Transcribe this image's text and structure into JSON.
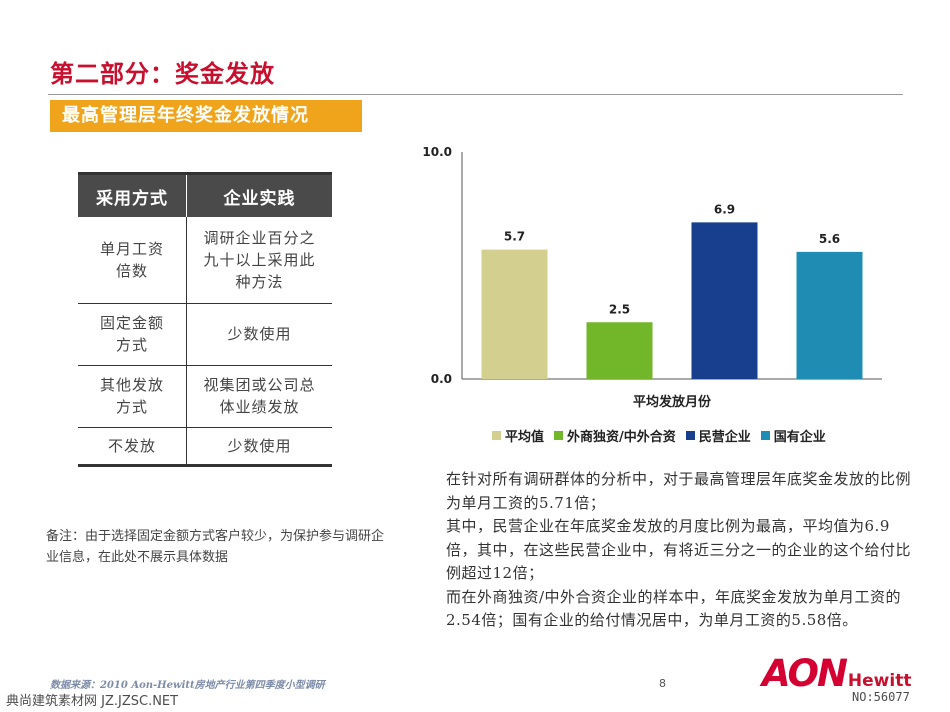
{
  "page": {
    "title": "第二部分：奖金发放",
    "subtitle": "最高管理层年终奖金发放情况",
    "page_number": "8"
  },
  "table": {
    "headers": [
      "采用方式",
      "企业实践"
    ],
    "rows": [
      {
        "method": "单月工资倍数",
        "practice": "调研企业百分之九十以上采用此种方法"
      },
      {
        "method": "固定金额方式",
        "practice": "少数使用"
      },
      {
        "method": "其他发放方式",
        "practice": "视集团或公司总体业绩发放"
      },
      {
        "method": "不发放",
        "practice": "少数使用"
      }
    ]
  },
  "note": "备注：由于选择固定金额方式客户较少，为保护参与调研企业信息，在此处不展示具体数据",
  "chart_data": {
    "type": "bar",
    "categories": [
      "平均值",
      "外商独资/中外合资",
      "民营企业",
      "国有企业"
    ],
    "values": [
      5.7,
      2.5,
      6.9,
      5.6
    ],
    "data_labels": [
      "5.7",
      "2.5",
      "6.9",
      "5.6"
    ],
    "colors": [
      "#d3cf8f",
      "#72b62a",
      "#173f8e",
      "#1f8db3"
    ],
    "xlabel": "平均发放月份",
    "ylabel": "",
    "ylim": [
      0,
      10
    ],
    "yticks": [
      "10.0",
      "0.0"
    ],
    "grid": false,
    "legend": "bottom"
  },
  "analysis": [
    "在针对所有调研群体的分析中，对于最高管理层年底奖金发放的比例为单月工资的5.71倍；",
    "其中，民营企业在年底奖金发放的月度比例为最高，平均值为6.9倍，其中，在这些民营企业中，有将近三分之一的企业的这个给付比例超过12倍；",
    "而在外商独资/中外合资企业的样本中，年底奖金发放为单月工资的2.54倍；国有企业的给付情况居中，为单月工资的5.58倍。"
  ],
  "footer": {
    "source": "数据来源：2010 Aon-Hewitt房地产行业第四季度小型调研",
    "logo_main": "AON",
    "logo_sub": "Hewitt",
    "watermark_left": "典尚建筑素材网 JZ.JZSC.NET",
    "watermark_right": "NO:56077"
  }
}
